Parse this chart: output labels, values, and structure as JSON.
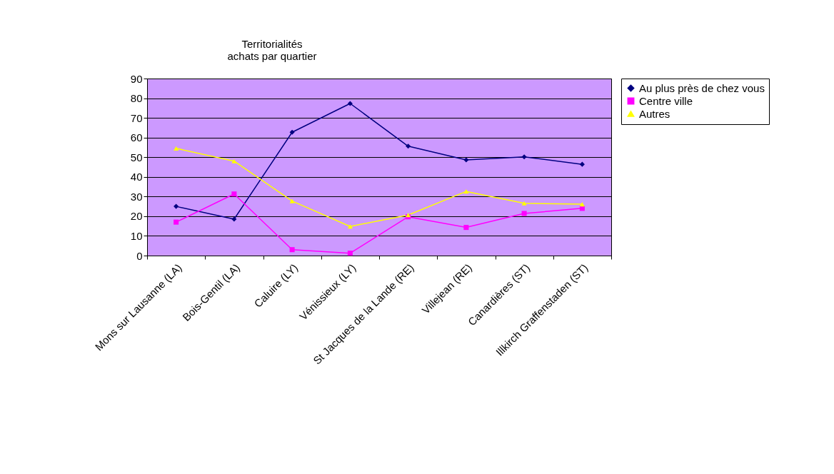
{
  "chart_data": {
    "type": "line",
    "title": [
      "Territorialités",
      "achats par quartier"
    ],
    "categories": [
      "Mons sur Lausanne (LA)",
      "Bois-Gentil (LA)",
      "Caluire (LY)",
      "Vénissieux (LY)",
      "St Jacques de la Lande (RE)",
      "Villejean (RE)",
      "Canardières (ST)",
      "Illkirch Graffenstaden (ST)"
    ],
    "series": [
      {
        "name": "Au plus près de chez vous",
        "color": "#000080",
        "marker": "diamond",
        "values": [
          25,
          18.5,
          62.7,
          77.3,
          55.6,
          48.6,
          50.2,
          46.4
        ]
      },
      {
        "name": "Centre ville",
        "color": "#ff00ff",
        "marker": "square",
        "values": [
          17,
          31.3,
          3,
          1.2,
          19.7,
          14.3,
          21.4,
          24
        ]
      },
      {
        "name": "Autres",
        "color": "#ffff00",
        "marker": "triangle",
        "values": [
          54.5,
          48,
          27.7,
          14.8,
          20.6,
          32.6,
          26.6,
          26.1
        ]
      }
    ],
    "ylim": [
      0,
      90
    ],
    "yticks": [
      0,
      10,
      20,
      30,
      40,
      50,
      60,
      70,
      80,
      90
    ],
    "grid": "y",
    "legend": "right"
  }
}
